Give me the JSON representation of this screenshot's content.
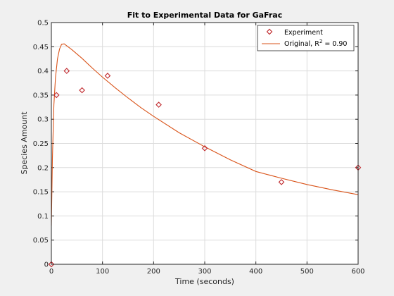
{
  "chart_data": {
    "type": "scatter",
    "title": "Fit to Experimental Data for GaFrac",
    "xlabel": "Time (seconds)",
    "ylabel": "Species Amount",
    "xlim": [
      0,
      600
    ],
    "ylim": [
      0,
      0.5
    ],
    "x_ticks": [
      0,
      100,
      200,
      300,
      400,
      500,
      600
    ],
    "y_ticks": [
      0,
      0.05,
      0.1,
      0.15,
      0.2,
      0.25,
      0.3,
      0.35,
      0.4,
      0.45,
      0.5
    ],
    "x_tick_labels": [
      "0",
      "100",
      "200",
      "300",
      "400",
      "500",
      "600"
    ],
    "y_tick_labels": [
      "0",
      "0.05",
      "0.1",
      "0.15",
      "0.2",
      "0.25",
      "0.3",
      "0.35",
      "0.4",
      "0.45",
      "0.5"
    ],
    "grid": true,
    "legend_position": "top-right",
    "series": [
      {
        "name": "Experiment",
        "kind": "markers",
        "marker": "diamond",
        "color": "#c0282c",
        "x": [
          0,
          10,
          30,
          60,
          110,
          210,
          300,
          450,
          600
        ],
        "y": [
          0,
          0.35,
          0.4,
          0.36,
          0.39,
          0.33,
          0.24,
          0.17,
          0.2
        ]
      },
      {
        "name": "Original, R",
        "name_superscript": "2",
        "name_suffix": " = 0.90",
        "kind": "line",
        "color": "#d95319",
        "x": [
          0,
          2,
          5,
          8,
          12,
          16,
          20,
          25,
          30,
          40,
          50,
          60,
          80,
          100,
          125,
          150,
          175,
          200,
          250,
          300,
          350,
          400,
          450,
          500,
          550,
          600
        ],
        "y": [
          0.08,
          0.22,
          0.33,
          0.385,
          0.425,
          0.445,
          0.455,
          0.456,
          0.452,
          0.444,
          0.435,
          0.426,
          0.406,
          0.387,
          0.365,
          0.344,
          0.324,
          0.306,
          0.272,
          0.243,
          0.216,
          0.192,
          0.178,
          0.165,
          0.154,
          0.144
        ]
      }
    ]
  }
}
